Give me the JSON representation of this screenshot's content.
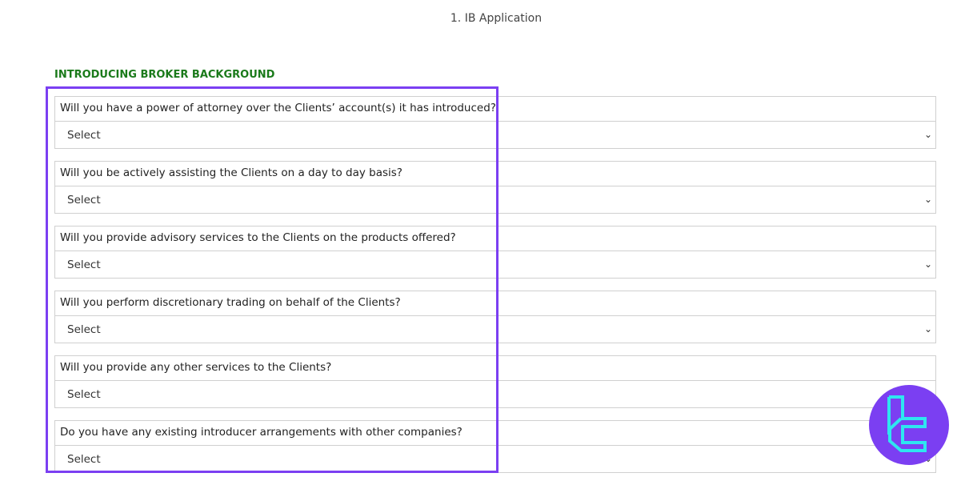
{
  "page_title": "1. IB Application",
  "section_title": "INTRODUCING BROKER BACKGROUND",
  "questions": [
    {
      "label": "Will you have a power of attorney over the Clients’ account(s) it has introduced?",
      "value": "Select"
    },
    {
      "label": "Will you be actively assisting the Clients on a day to day basis?",
      "value": "Select"
    },
    {
      "label": "Will you provide advisory services to the Clients on the products offered?",
      "value": "Select"
    },
    {
      "label": "Will you perform discretionary trading on behalf of the Clients?",
      "value": "Select"
    },
    {
      "label": "Will you provide any other services to the Clients?",
      "value": "Select"
    },
    {
      "label": "Do you have any existing introducer arrangements with other companies?",
      "value": "Select"
    }
  ],
  "colors": {
    "highlight": "#7b3ff2",
    "section": "#1a7a1a",
    "logo_bg": "#7b3ff2",
    "logo_fg": "#2ee6f0"
  }
}
